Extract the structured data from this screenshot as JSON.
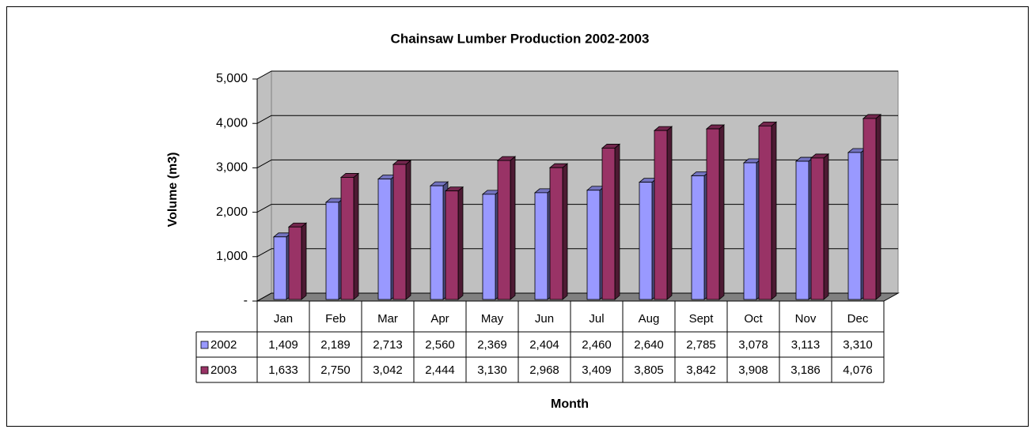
{
  "chart_data": {
    "type": "bar3d",
    "title": "Chainsaw Lumber Production 2002-2003",
    "xlabel": "Month",
    "ylabel": "Volume (m3)",
    "categories": [
      "Jan",
      "Feb",
      "Mar",
      "Apr",
      "May",
      "Jun",
      "Jul",
      "Aug",
      "Sept",
      "Oct",
      "Nov",
      "Dec"
    ],
    "series": [
      {
        "name": "2002",
        "color": "#9999ff",
        "values": [
          1409,
          2189,
          2713,
          2560,
          2369,
          2404,
          2460,
          2640,
          2785,
          3078,
          3113,
          3310
        ],
        "value_labels": [
          "1,409",
          "2,189",
          "2,713",
          "2,560",
          "2,369",
          "2,404",
          "2,460",
          "2,640",
          "2,785",
          "3,078",
          "3,113",
          "3,310"
        ]
      },
      {
        "name": "2003",
        "color": "#993366",
        "values": [
          1633,
          2750,
          3042,
          2444,
          3130,
          2968,
          3409,
          3805,
          3842,
          3908,
          3186,
          4076
        ],
        "value_labels": [
          "1,633",
          "2,750",
          "3,042",
          "2,444",
          "3,130",
          "2,968",
          "3,409",
          "3,805",
          "3,842",
          "3,908",
          "3,186",
          "4,076"
        ]
      }
    ],
    "ylim": [
      0,
      5000
    ],
    "yticks": [
      {
        "value": 0,
        "label": "-"
      },
      {
        "value": 1000,
        "label": "1,000"
      },
      {
        "value": 2000,
        "label": "2,000"
      },
      {
        "value": 3000,
        "label": "3,000"
      },
      {
        "value": 4000,
        "label": "4,000"
      },
      {
        "value": 5000,
        "label": "5,000"
      }
    ],
    "grid": true
  }
}
